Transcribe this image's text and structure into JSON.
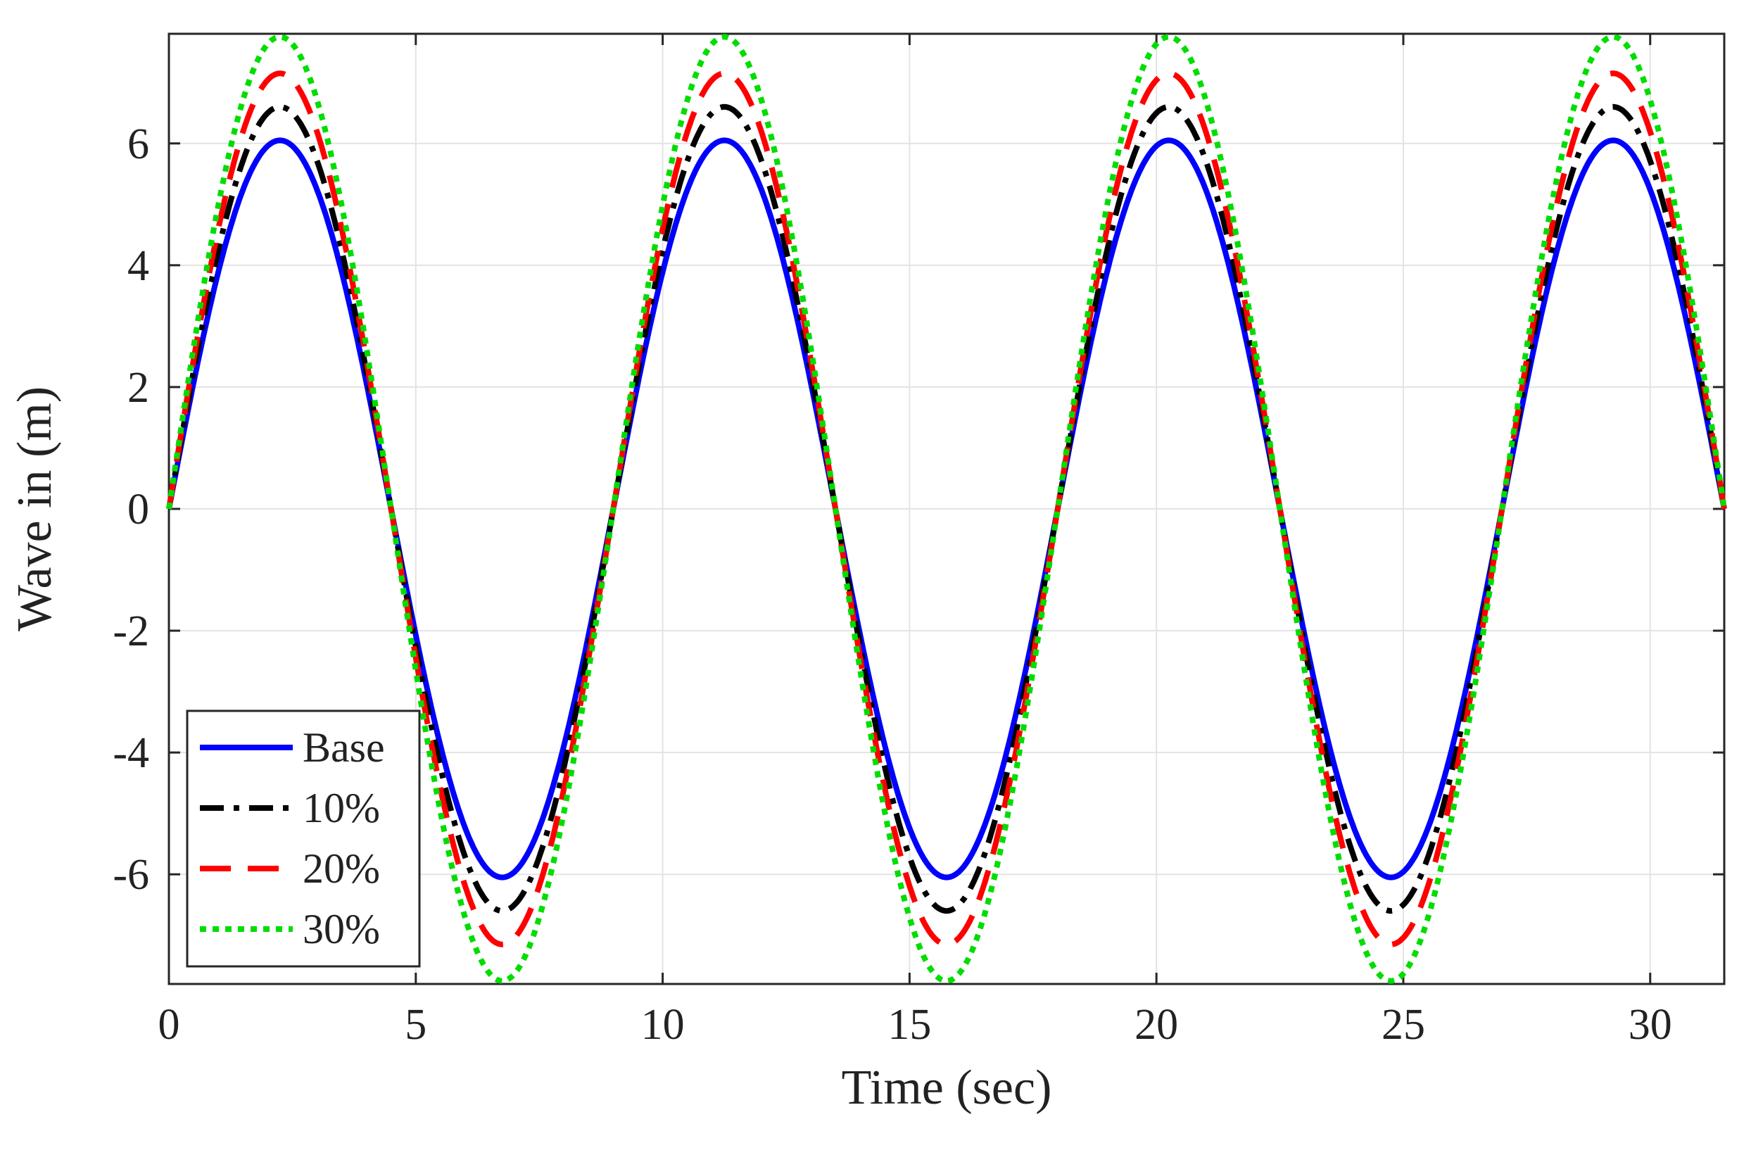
{
  "chart_data": {
    "type": "line",
    "title": "",
    "xlabel": "Time (sec)",
    "ylabel": "Wave in (m)",
    "xlim": [
      0,
      31.5
    ],
    "ylim": [
      -7.8,
      7.8
    ],
    "xticks": [
      0,
      5,
      10,
      15,
      20,
      25,
      30
    ],
    "yticks": [
      -6,
      -4,
      -2,
      0,
      2,
      4,
      6
    ],
    "grid": true,
    "legend_position": "bottom-left",
    "period_sec": 9.0,
    "x": [
      0,
      2.25,
      4.5,
      6.75,
      9.0,
      11.25,
      13.5,
      15.75,
      18.0,
      20.25,
      22.5,
      24.75,
      27.0,
      29.25,
      31.5
    ],
    "series": [
      {
        "name": "Base",
        "color": "#0000ff",
        "style": "solid",
        "amplitude": 6.05,
        "values": [
          0,
          6.05,
          0,
          -6.05,
          0,
          6.05,
          0,
          -6.05,
          0,
          6.05,
          0,
          -6.05,
          0,
          6.05,
          0
        ]
      },
      {
        "name": "10%",
        "color": "#000000",
        "style": "dashdot",
        "amplitude": 6.6,
        "values": [
          0,
          6.6,
          0,
          -6.6,
          0,
          6.6,
          0,
          -6.6,
          0,
          6.6,
          0,
          -6.6,
          0,
          6.6,
          0
        ]
      },
      {
        "name": "20%",
        "color": "#ff0000",
        "style": "dashed",
        "amplitude": 7.15,
        "values": [
          0,
          7.15,
          0,
          -7.15,
          0,
          7.15,
          0,
          -7.15,
          0,
          7.15,
          0,
          -7.15,
          0,
          7.15,
          0
        ]
      },
      {
        "name": "30%",
        "color": "#00dd00",
        "style": "dotted",
        "amplitude": 7.75,
        "values": [
          0,
          7.75,
          0,
          -7.75,
          0,
          7.75,
          0,
          -7.75,
          0,
          7.75,
          0,
          -7.75,
          0,
          7.75,
          0
        ]
      }
    ]
  }
}
